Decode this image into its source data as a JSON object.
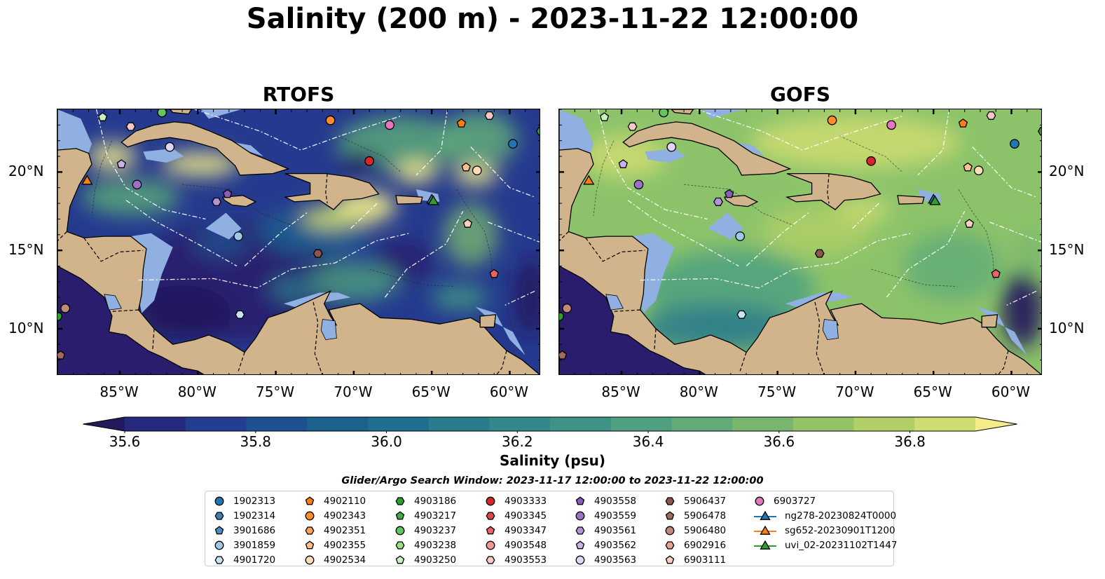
{
  "title": "Salinity (200 m) - 2023-11-22 12:00:00",
  "panels": [
    {
      "title": "RTOFS",
      "palette": "low"
    },
    {
      "title": "GOFS",
      "palette": "high"
    }
  ],
  "colors": {
    "land": "#d2b48c",
    "shelf": "#8fb0e0",
    "ocean_low": "#2a1d6e",
    "ocean_mid": "#2f8a8c",
    "ocean_high": "#c6e06e"
  },
  "map": {
    "lon_range": [
      -89,
      -58
    ],
    "lat_range": [
      7,
      24
    ],
    "lat_ticks": [
      "20°N",
      "15°N",
      "10°N"
    ],
    "lat_values": [
      20,
      15,
      10
    ],
    "lon_ticks": [
      "85°W",
      "80°W",
      "75°W",
      "70°W",
      "65°W",
      "60°W"
    ],
    "lon_values": [
      -85,
      -80,
      -75,
      -70,
      -65,
      -60
    ]
  },
  "colorbar": {
    "label": "Salinity (psu)",
    "min": 35.55,
    "max": 36.95,
    "ticks": [
      "35.6",
      "35.8",
      "36.0",
      "36.2",
      "36.4",
      "36.6",
      "36.8"
    ],
    "tick_values": [
      35.6,
      35.8,
      36.0,
      36.2,
      36.4,
      36.6,
      36.8
    ],
    "colors": [
      "#24195c",
      "#262a7e",
      "#233d8f",
      "#1e5190",
      "#1c628f",
      "#206e8d",
      "#2a7b8c",
      "#34878a",
      "#3f9386",
      "#4ea080",
      "#60ab78",
      "#78b66f",
      "#93c267",
      "#b1cf66",
      "#cfdc72",
      "#f2ec8a"
    ]
  },
  "search_window": "Glider/Argo Search Window: 2023-11-17 12:00:00 to 2023-11-22 12:00:00",
  "legend": [
    [
      {
        "label": "1902313",
        "marker": "circle",
        "color": "#1f77b4"
      },
      {
        "label": "1902314",
        "marker": "hexagon",
        "color": "#3a7fb8"
      },
      {
        "label": "3901686",
        "marker": "pentagon",
        "color": "#4a8cc6"
      },
      {
        "label": "3901859",
        "marker": "circle",
        "color": "#9ec9ea"
      },
      {
        "label": "4901720",
        "marker": "hexagon",
        "color": "#c7e4f5"
      }
    ],
    [
      {
        "label": "4902110",
        "marker": "pentagon",
        "color": "#ff7f0e"
      },
      {
        "label": "4902343",
        "marker": "circle",
        "color": "#ff8c2a"
      },
      {
        "label": "4902351",
        "marker": "hexagon",
        "color": "#ffa158"
      },
      {
        "label": "4902355",
        "marker": "pentagon",
        "color": "#ffc08a"
      },
      {
        "label": "4902534",
        "marker": "circle",
        "color": "#ffdcb8"
      }
    ],
    [
      {
        "label": "4903186",
        "marker": "hexagon",
        "color": "#2ca02c"
      },
      {
        "label": "4903217",
        "marker": "pentagon",
        "color": "#3cb03c"
      },
      {
        "label": "4903237",
        "marker": "circle",
        "color": "#62c462"
      },
      {
        "label": "4903238",
        "marker": "hexagon",
        "color": "#98df8a"
      },
      {
        "label": "4903250",
        "marker": "pentagon",
        "color": "#c8f2c0"
      }
    ],
    [
      {
        "label": "4903333",
        "marker": "circle",
        "color": "#d62728"
      },
      {
        "label": "4903345",
        "marker": "hexagon",
        "color": "#e04444"
      },
      {
        "label": "4903347",
        "marker": "pentagon",
        "color": "#e86464"
      },
      {
        "label": "4903548",
        "marker": "circle",
        "color": "#f29896"
      },
      {
        "label": "4903553",
        "marker": "hexagon",
        "color": "#f8c8c6"
      }
    ],
    [
      {
        "label": "4903558",
        "marker": "pentagon",
        "color": "#8c5cbd"
      },
      {
        "label": "4903559",
        "marker": "circle",
        "color": "#9c70c8"
      },
      {
        "label": "4903561",
        "marker": "hexagon",
        "color": "#b492d8"
      },
      {
        "label": "4903562",
        "marker": "pentagon",
        "color": "#ccb2ea"
      },
      {
        "label": "4903563",
        "marker": "circle",
        "color": "#e2d4f6"
      }
    ],
    [
      {
        "label": "5906437",
        "marker": "hexagon",
        "color": "#8c564b"
      },
      {
        "label": "5906478",
        "marker": "pentagon",
        "color": "#a06a5e"
      },
      {
        "label": "5906480",
        "marker": "circle",
        "color": "#c08a7a"
      },
      {
        "label": "6902916",
        "marker": "hexagon",
        "color": "#e6a490"
      },
      {
        "label": "6903111",
        "marker": "pentagon",
        "color": "#f8cfc0"
      }
    ],
    [
      {
        "label": "6903727",
        "marker": "circle",
        "color": "#e377c2"
      },
      {
        "label": "ng278-20230824T0000",
        "marker": "triangle",
        "color": "#1f77b4"
      },
      {
        "label": "sg652-20230901T1200",
        "marker": "triangle",
        "color": "#ff7f0e"
      },
      {
        "label": "uvi_02-20231102T1447",
        "marker": "triangle",
        "color": "#2ca02c"
      }
    ]
  ],
  "floats": [
    {
      "lon": -86.1,
      "lat": 23.5,
      "marker": "pentagon",
      "color": "#c8f2c0"
    },
    {
      "lon": -84.3,
      "lat": 22.9,
      "marker": "hexagon",
      "color": "#f8c8c6"
    },
    {
      "lon": -82.3,
      "lat": 23.8,
      "marker": "circle",
      "color": "#62c462"
    },
    {
      "lon": -81.8,
      "lat": 21.6,
      "marker": "circle",
      "color": "#e2d4f6"
    },
    {
      "lon": -84.9,
      "lat": 20.5,
      "marker": "pentagon",
      "color": "#ccb2ea"
    },
    {
      "lon": -83.9,
      "lat": 19.2,
      "marker": "circle",
      "color": "#9c70c8"
    },
    {
      "lon": -78.1,
      "lat": 18.6,
      "marker": "pentagon",
      "color": "#8c5cbd"
    },
    {
      "lon": -78.8,
      "lat": 18.1,
      "marker": "hexagon",
      "color": "#b492d8"
    },
    {
      "lon": -77.4,
      "lat": 15.9,
      "marker": "circle",
      "color": "#9ec9ea"
    },
    {
      "lon": -77.3,
      "lat": 10.9,
      "marker": "hexagon",
      "color": "#c7e4f5"
    },
    {
      "lon": -71.5,
      "lat": 23.3,
      "marker": "circle",
      "color": "#ff8c2a"
    },
    {
      "lon": -67.7,
      "lat": 23.0,
      "marker": "circle",
      "color": "#e377c2"
    },
    {
      "lon": -69.0,
      "lat": 20.7,
      "marker": "circle",
      "color": "#d62728"
    },
    {
      "lon": -63.1,
      "lat": 23.1,
      "marker": "pentagon",
      "color": "#ff7f0e"
    },
    {
      "lon": -61.3,
      "lat": 23.6,
      "marker": "hexagon",
      "color": "#f8c8c6"
    },
    {
      "lon": -59.8,
      "lat": 21.8,
      "marker": "circle",
      "color": "#1f77b4"
    },
    {
      "lon": -62.8,
      "lat": 20.3,
      "marker": "pentagon",
      "color": "#ffc08a"
    },
    {
      "lon": -62.1,
      "lat": 20.1,
      "marker": "circle",
      "color": "#ffdcb8"
    },
    {
      "lon": -62.7,
      "lat": 16.7,
      "marker": "pentagon",
      "color": "#f8cfc0"
    },
    {
      "lon": -72.3,
      "lat": 14.8,
      "marker": "hexagon",
      "color": "#8c564b"
    },
    {
      "lon": -61.0,
      "lat": 13.5,
      "marker": "pentagon",
      "color": "#e86464"
    },
    {
      "lon": -88.5,
      "lat": 11.3,
      "marker": "circle",
      "color": "#c08a7a"
    },
    {
      "lon": -88.8,
      "lat": 8.3,
      "marker": "pentagon",
      "color": "#a06a5e"
    },
    {
      "lon": -89.0,
      "lat": 10.8,
      "marker": "circle",
      "color": "#2ca02c"
    },
    {
      "lon": -58.0,
      "lat": 22.6,
      "marker": "hexagon",
      "color": "#2ca02c"
    }
  ],
  "gliders": [
    {
      "lon": -87.1,
      "lat": 19.4,
      "color": "#ff7f0e"
    },
    {
      "lon": -65.0,
      "lat": 18.2,
      "color": "#1f77b4"
    },
    {
      "lon": -64.9,
      "lat": 18.1,
      "color": "#2ca02c"
    }
  ]
}
